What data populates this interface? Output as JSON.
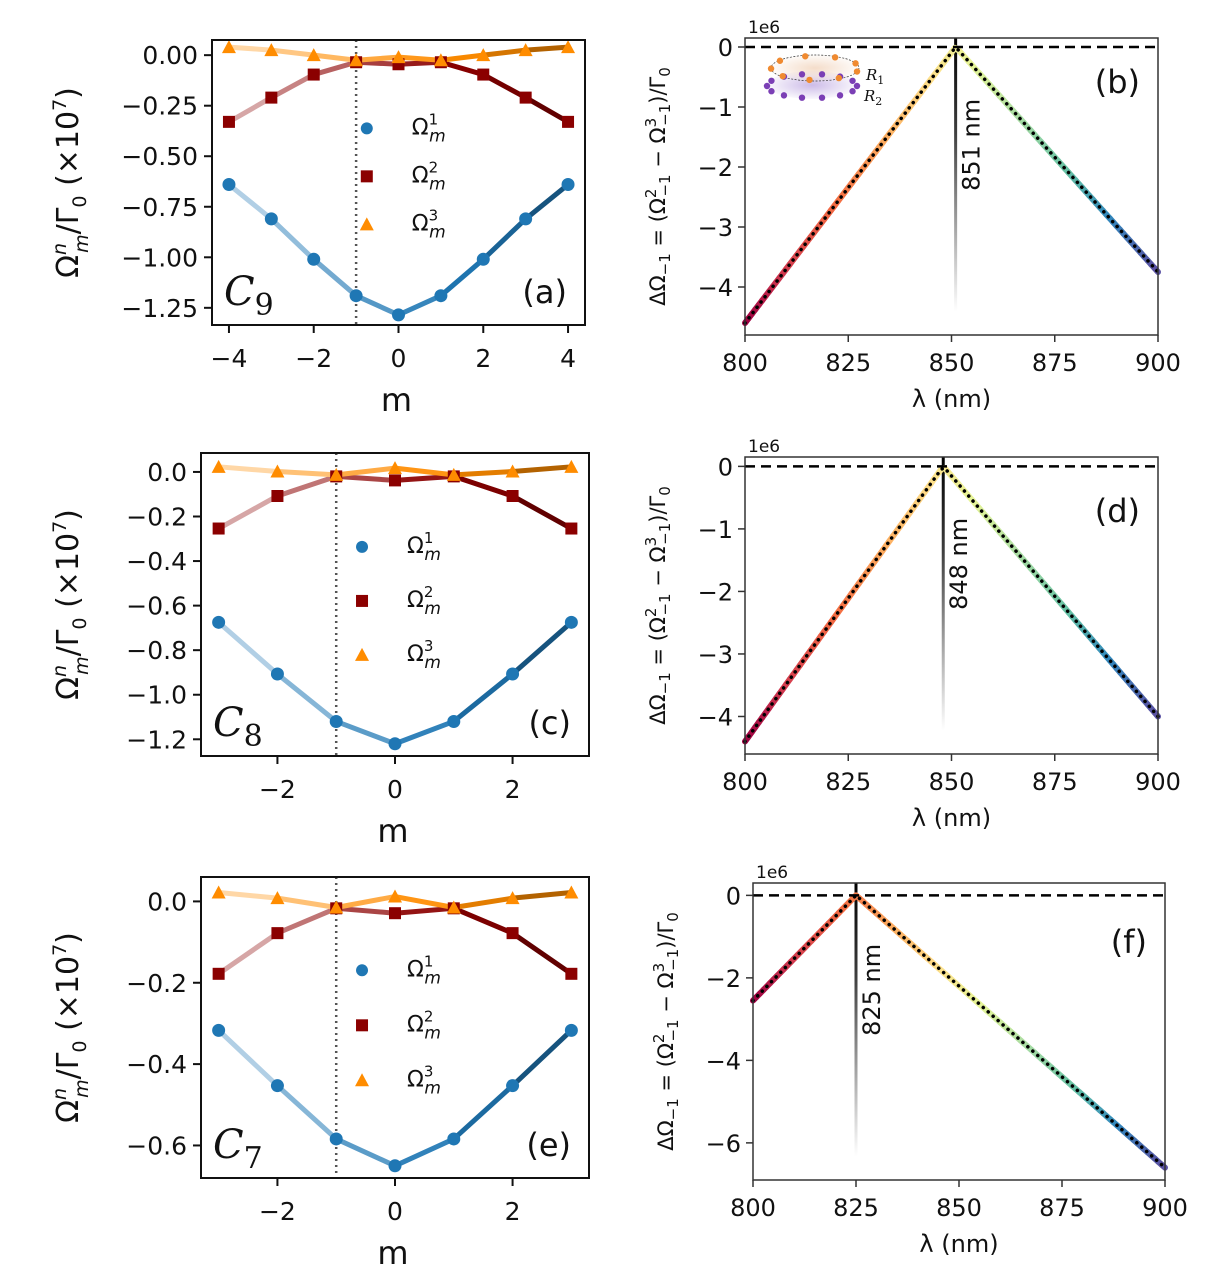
{
  "figure": {
    "description": "Six-panel physics figure: Omega_m^n / Gamma_0 vs m for C9, C8, C7 rings (left), and Delta Omega_-1 vs wavelength (right)"
  },
  "chart_data": [
    {
      "id": "a",
      "type": "line",
      "panel_label": "(a)",
      "symmetry_label": "C",
      "symmetry_sub": "9",
      "xlabel": "m",
      "ylabel": "Ω_m^n/Γ_0 (×10^7)",
      "ylabel_parts": {
        "main": "Ω",
        "sup": "n",
        "sub": "m",
        "rest": "/Γ",
        "rest_sub": "0",
        "scale": " (×10",
        "scale_sup": "7",
        "close": ")"
      },
      "xlim": [
        -4.4,
        4.4
      ],
      "ylim": [
        -1.335,
        0.075
      ],
      "xticks": [
        -4,
        -2,
        0,
        2,
        4
      ],
      "xtick_labels": [
        "−4",
        "−2",
        "0",
        "2",
        "4"
      ],
      "yticks": [
        0.0,
        -0.25,
        -0.5,
        -0.75,
        -1.0,
        -1.25
      ],
      "ytick_labels": [
        "0.00",
        "−0.25",
        "−0.50",
        "−0.75",
        "−1.00",
        "−1.25"
      ],
      "vline_x": -1,
      "x": [
        -4,
        -3,
        -2,
        -1,
        0,
        1,
        2,
        3,
        4
      ],
      "series": [
        {
          "name": "Ω_m^1",
          "sup": "1",
          "marker": "circle",
          "color": "#1f77b4",
          "values": [
            -0.64,
            -0.81,
            -1.01,
            -1.19,
            -1.285,
            -1.19,
            -1.01,
            -0.81,
            -0.64
          ]
        },
        {
          "name": "Ω_m^2",
          "sup": "2",
          "marker": "square",
          "color": "#8b0000",
          "values": [
            -0.33,
            -0.21,
            -0.096,
            -0.035,
            -0.045,
            -0.035,
            -0.096,
            -0.21,
            -0.33
          ]
        },
        {
          "name": "Ω_m^3",
          "sup": "3",
          "marker": "triangle",
          "color": "#ff8c00",
          "values": [
            0.04,
            0.025,
            0.0,
            -0.025,
            -0.01,
            -0.025,
            0.0,
            0.025,
            0.04
          ]
        }
      ],
      "legend": "center"
    },
    {
      "id": "b",
      "type": "line",
      "panel_label": "(b)",
      "xlabel": "λ (nm)",
      "ylabel": "ΔΩ_−1 = (Ω_−1^2 − Ω_−1^3)/Γ_0",
      "offset_text": "1e6",
      "xlim": [
        800,
        900
      ],
      "ylim": [
        -4.8,
        0.15
      ],
      "xticks": [
        800,
        825,
        850,
        875,
        900
      ],
      "xtick_labels": [
        "800",
        "825",
        "850",
        "875",
        "900"
      ],
      "yticks": [
        0,
        -1,
        -2,
        -3,
        -4
      ],
      "ytick_labels": [
        "0",
        "−1",
        "−2",
        "−3",
        "−4"
      ],
      "hline_y": 0,
      "crossing_nm": 851,
      "crossing_label": "851 nm",
      "x": [
        800,
        851,
        900
      ],
      "values": [
        -4.6,
        0.0,
        -3.75
      ],
      "inset": {
        "ring1": "R",
        "ring1_sub": "1",
        "ring2": "R",
        "ring2_sub": "2"
      }
    },
    {
      "id": "c",
      "type": "line",
      "panel_label": "(c)",
      "symmetry_label": "C",
      "symmetry_sub": "8",
      "xlabel": "m",
      "ylabel": "Ω_m^n/Γ_0 (×10^7)",
      "xlim": [
        -3.3,
        3.3
      ],
      "ylim": [
        -1.275,
        0.085
      ],
      "xticks": [
        -2,
        0,
        2
      ],
      "xtick_labels": [
        "−2",
        "0",
        "2"
      ],
      "yticks": [
        0.0,
        -0.2,
        -0.4,
        -0.6,
        -0.8,
        -1.0,
        -1.2
      ],
      "ytick_labels": [
        "0.0",
        "−0.2",
        "−0.4",
        "−0.6",
        "−0.8",
        "−1.0",
        "−1.2"
      ],
      "vline_x": -1,
      "x": [
        -3,
        -2,
        -1,
        0,
        1,
        2,
        3
      ],
      "series": [
        {
          "name": "Ω_m^1",
          "sup": "1",
          "marker": "circle",
          "color": "#1f77b4",
          "values": [
            -0.675,
            -0.907,
            -1.12,
            -1.22,
            -1.12,
            -0.907,
            -0.675
          ]
        },
        {
          "name": "Ω_m^2",
          "sup": "2",
          "marker": "square",
          "color": "#8b0000",
          "values": [
            -0.254,
            -0.108,
            -0.02,
            -0.038,
            -0.02,
            -0.108,
            -0.254
          ]
        },
        {
          "name": "Ω_m^3",
          "sup": "3",
          "marker": "triangle",
          "color": "#ff8c00",
          "values": [
            0.023,
            0.002,
            -0.013,
            0.017,
            -0.013,
            0.002,
            0.023
          ]
        }
      ],
      "legend": "center"
    },
    {
      "id": "d",
      "type": "line",
      "panel_label": "(d)",
      "xlabel": "λ (nm)",
      "ylabel": "ΔΩ_−1 = (Ω_−1^2 − Ω_−1^3)/Γ_0",
      "offset_text": "1e6",
      "xlim": [
        800,
        900
      ],
      "ylim": [
        -4.6,
        0.15
      ],
      "xticks": [
        800,
        825,
        850,
        875,
        900
      ],
      "xtick_labels": [
        "800",
        "825",
        "850",
        "875",
        "900"
      ],
      "yticks": [
        0,
        -1,
        -2,
        -3,
        -4
      ],
      "ytick_labels": [
        "0",
        "−1",
        "−2",
        "−3",
        "−4"
      ],
      "hline_y": 0,
      "crossing_nm": 848,
      "crossing_label": "848 nm",
      "x": [
        800,
        848,
        900
      ],
      "values": [
        -4.4,
        0.0,
        -4.0
      ]
    },
    {
      "id": "e",
      "type": "line",
      "panel_label": "(e)",
      "symmetry_label": "C",
      "symmetry_sub": "7",
      "xlabel": "m",
      "ylabel": "Ω_m^n/Γ_0 (×10^7)",
      "xlim": [
        -3.3,
        3.3
      ],
      "ylim": [
        -0.68,
        0.06
      ],
      "xticks": [
        -2,
        0,
        2
      ],
      "xtick_labels": [
        "−2",
        "0",
        "2"
      ],
      "yticks": [
        0.0,
        -0.2,
        -0.4,
        -0.6
      ],
      "ytick_labels": [
        "0.0",
        "−0.2",
        "−0.4",
        "−0.6"
      ],
      "vline_x": -1,
      "x": [
        -3,
        -2,
        -1,
        0,
        1,
        2,
        3
      ],
      "series": [
        {
          "name": "Ω_m^1",
          "sup": "1",
          "marker": "circle",
          "color": "#1f77b4",
          "values": [
            -0.317,
            -0.453,
            -0.584,
            -0.65,
            -0.584,
            -0.453,
            -0.317
          ]
        },
        {
          "name": "Ω_m^2",
          "sup": "2",
          "marker": "square",
          "color": "#8b0000",
          "values": [
            -0.178,
            -0.078,
            -0.017,
            -0.029,
            -0.017,
            -0.078,
            -0.178
          ]
        },
        {
          "name": "Ω_m^3",
          "sup": "3",
          "marker": "triangle",
          "color": "#ff8c00",
          "values": [
            0.022,
            0.008,
            -0.015,
            0.012,
            -0.015,
            0.008,
            0.022
          ]
        }
      ],
      "legend": "center"
    },
    {
      "id": "f",
      "type": "line",
      "panel_label": "(f)",
      "xlabel": "λ (nm)",
      "ylabel": "ΔΩ_−1 = (Ω_−1^2 − Ω_−1^3)/Γ_0",
      "offset_text": "1e6",
      "xlim": [
        800,
        900
      ],
      "ylim": [
        -6.9,
        0.3
      ],
      "xticks": [
        800,
        825,
        850,
        875,
        900
      ],
      "xtick_labels": [
        "800",
        "825",
        "850",
        "875",
        "900"
      ],
      "yticks": [
        0,
        -2,
        -4,
        -6
      ],
      "ytick_labels": [
        "0",
        "−2",
        "−4",
        "−6"
      ],
      "hline_y": 0,
      "crossing_nm": 825,
      "crossing_label": "825 nm",
      "x": [
        800,
        825,
        900
      ],
      "values": [
        -2.55,
        0.0,
        -6.6
      ]
    }
  ]
}
